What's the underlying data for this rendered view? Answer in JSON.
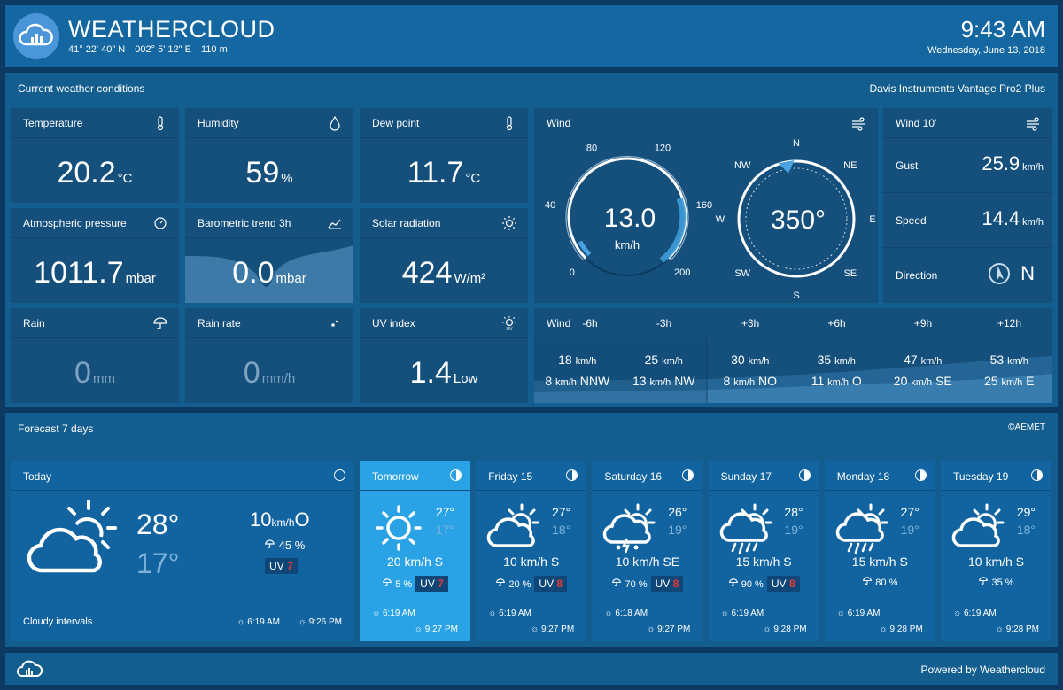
{
  "header": {
    "title": "WEATHERCLOUD",
    "lat": "41° 22' 40\" N",
    "lon": "002° 5' 12\" E",
    "alt": "110 m",
    "time": "9:43 AM",
    "date": "Wednesday, June 13, 2018"
  },
  "current": {
    "title": "Current weather conditions",
    "device": "Davis Instruments Vantage Pro2 Plus",
    "temperature": {
      "label": "Temperature",
      "value": "20.2",
      "unit": "°C"
    },
    "humidity": {
      "label": "Humidity",
      "value": "59",
      "unit": "%"
    },
    "dewpoint": {
      "label": "Dew point",
      "value": "11.7",
      "unit": "°C"
    },
    "pressure": {
      "label": "Atmospheric pressure",
      "value": "1011.7",
      "unit": "mbar"
    },
    "trend": {
      "label": "Barometric trend 3h",
      "value": "0.0",
      "unit": "mbar"
    },
    "solar": {
      "label": "Solar radiation",
      "value": "424",
      "unit": "W/m²"
    },
    "rain": {
      "label": "Rain",
      "value": "0",
      "unit": "mm"
    },
    "rainrate": {
      "label": "Rain rate",
      "value": "0",
      "unit": "mm/h"
    },
    "uv": {
      "label": "UV index",
      "value": "1.4",
      "unit": "Low"
    },
    "wind": {
      "label": "Wind",
      "speed": "13.0",
      "unit": "km/h",
      "speed_ticks": [
        "0",
        "40",
        "80",
        "120",
        "160",
        "200"
      ],
      "direction": "350°",
      "direction_deg": 350,
      "compass": [
        "N",
        "NE",
        "E",
        "SE",
        "S",
        "SW",
        "W",
        "NW"
      ]
    },
    "wind10": {
      "label": "Wind 10'",
      "gust_label": "Gust",
      "gust_value": "25.9",
      "gust_unit": "km/h",
      "speed_label": "Speed",
      "speed_value": "14.4",
      "speed_unit": "km/h",
      "dir_label": "Direction",
      "dir_value": "N"
    },
    "windforecast": {
      "title": "Wind",
      "cols": [
        {
          "label": "-6h",
          "gust": "18",
          "avg": "8",
          "dir": "NNW"
        },
        {
          "label": "-3h",
          "gust": "25",
          "avg": "13",
          "dir": "NW"
        },
        {
          "label": "+3h",
          "gust": "30",
          "avg": "8",
          "dir": "NO"
        },
        {
          "label": "+6h",
          "gust": "35",
          "avg": "11",
          "dir": "O"
        },
        {
          "label": "+9h",
          "gust": "47",
          "avg": "20",
          "dir": "SE"
        },
        {
          "label": "+12h",
          "gust": "53",
          "avg": "25",
          "dir": "E"
        }
      ],
      "unit": "km/h"
    }
  },
  "forecast": {
    "title": "Forecast 7 days",
    "source": "©AEMET",
    "today": {
      "name": "Today",
      "max": "28°",
      "min": "17°",
      "wind": "10",
      "wind_unit": "km/h",
      "wind_dir": "O",
      "rain": "45 %",
      "uv_label": "UV",
      "uv": "7",
      "desc": "Cloudy intervals",
      "sunrise": "6:19 AM",
      "sunset": "9:26 PM"
    },
    "days": [
      {
        "name": "Tomorrow",
        "max": "27°",
        "min": "17°",
        "wind": "20 km/h S",
        "rain": "5 %",
        "uv": "7",
        "sunrise": "6:19 AM",
        "sunset": "9:27 PM",
        "icon": "sun"
      },
      {
        "name": "Friday 15",
        "max": "27°",
        "min": "18°",
        "wind": "10 km/h S",
        "rain": "20 %",
        "uv": "8",
        "sunrise": "6:19 AM",
        "sunset": "9:27 PM",
        "icon": "cloud-sun"
      },
      {
        "name": "Saturday 16",
        "max": "26°",
        "min": "19°",
        "wind": "10 km/h SE",
        "rain": "70 %",
        "uv": "8",
        "sunrise": "6:18 AM",
        "sunset": "9:27 PM",
        "icon": "storm-sun"
      },
      {
        "name": "Sunday 17",
        "max": "28°",
        "min": "19°",
        "wind": "15 km/h S",
        "rain": "90 %",
        "uv": "8",
        "sunrise": "6:19 AM",
        "sunset": "9:28 PM",
        "icon": "rain-sun"
      },
      {
        "name": "Monday 18",
        "max": "27°",
        "min": "19°",
        "wind": "15 km/h S",
        "rain": "80 %",
        "uv": "",
        "sunrise": "6:19 AM",
        "sunset": "9:28 PM",
        "icon": "rain-sun"
      },
      {
        "name": "Tuesday 19",
        "max": "29°",
        "min": "18°",
        "wind": "10 km/h S",
        "rain": "35 %",
        "uv": "",
        "sunrise": "6:19 AM",
        "sunset": "9:28 PM",
        "icon": "cloud-sun"
      }
    ]
  },
  "footer": {
    "powered": "Powered by Weathercloud"
  },
  "colors": {
    "accent": "#4a9fd8",
    "highlight": "#2aa3e6",
    "uv_high": "#e53935"
  }
}
